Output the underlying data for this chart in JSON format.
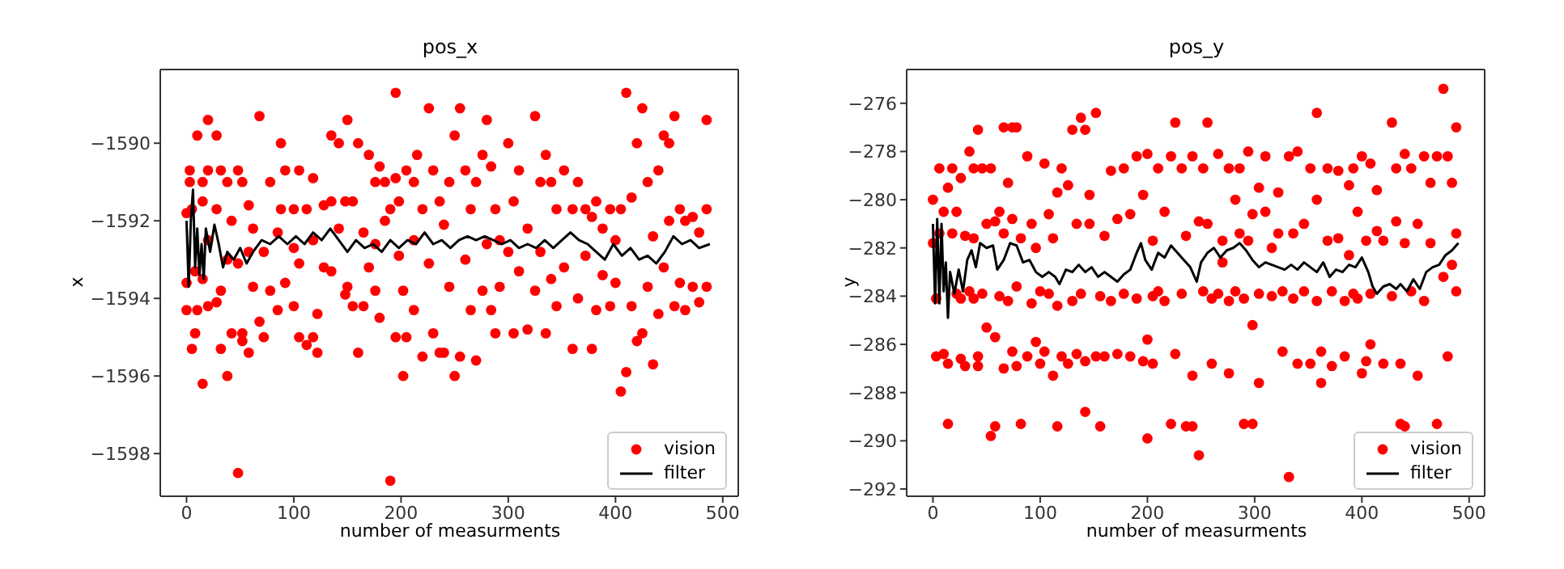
{
  "chart_data": [
    {
      "type": "scatter",
      "title": "pos_x",
      "xlabel": "number of measurments",
      "ylabel": "x",
      "xlim": [
        -24.5,
        514.5
      ],
      "xticks": [
        0,
        100,
        200,
        300,
        400,
        500
      ],
      "ylim": [
        -1599.1,
        -1588.1
      ],
      "yticks": [
        -1598,
        -1596,
        -1594,
        -1592,
        -1590
      ],
      "legend": "lower right",
      "series": [
        {
          "name": "vision",
          "type": "scatter",
          "marker": "circle",
          "color": "#ff0000",
          "x": [
            0,
            0,
            0,
            3,
            3,
            5,
            5,
            8,
            8,
            10,
            10,
            15,
            15,
            15,
            15,
            20,
            20,
            20,
            20,
            28,
            28,
            28,
            32,
            32,
            32,
            38,
            38,
            38,
            42,
            42,
            48,
            48,
            48,
            52,
            52,
            52,
            58,
            58,
            58,
            62,
            62,
            68,
            68,
            72,
            72,
            78,
            78,
            85,
            85,
            88,
            88,
            92,
            92,
            100,
            100,
            100,
            105,
            105,
            105,
            112,
            112,
            118,
            118,
            118,
            122,
            122,
            128,
            128,
            135,
            135,
            135,
            142,
            142,
            148,
            148,
            150,
            150,
            155,
            155,
            160,
            160,
            165,
            165,
            170,
            170,
            176,
            176,
            176,
            180,
            180,
            185,
            185,
            190,
            190,
            195,
            195,
            195,
            198,
            198,
            202,
            202,
            205,
            205,
            212,
            212,
            212,
            215,
            220,
            220,
            226,
            226,
            230,
            230,
            236,
            236,
            240,
            240,
            245,
            245,
            250,
            250,
            255,
            255,
            260,
            260,
            265,
            265,
            270,
            270,
            276,
            276,
            280,
            280,
            284,
            284,
            288,
            288,
            292,
            292,
            300,
            300,
            305,
            305,
            310,
            310,
            318,
            318,
            325,
            325,
            330,
            330,
            335,
            335,
            340,
            340,
            345,
            345,
            352,
            352,
            360,
            360,
            365,
            365,
            372,
            372,
            378,
            378,
            382,
            382,
            388,
            388,
            395,
            395,
            400,
            400,
            405,
            405,
            410,
            410,
            415,
            415,
            420,
            420,
            425,
            425,
            430,
            430,
            435,
            435,
            440,
            440,
            445,
            445,
            450,
            450,
            455,
            455,
            460,
            460,
            465,
            465,
            472,
            472,
            478,
            478,
            485,
            485,
            485
          ],
          "values": [
            -1591.8,
            -1593.6,
            -1594.3,
            -1590.7,
            -1591.0,
            -1591.7,
            -1595.3,
            -1594.9,
            -1593.3,
            -1589.8,
            -1594.3,
            -1591.0,
            -1591.5,
            -1596.2,
            -1593.5,
            -1590.7,
            -1589.4,
            -1592.5,
            -1594.2,
            -1589.8,
            -1594.1,
            -1591.7,
            -1590.7,
            -1595.3,
            -1593.8,
            -1591.0,
            -1596.0,
            -1593.0,
            -1594.9,
            -1592.0,
            -1590.7,
            -1598.5,
            -1593.1,
            -1591.0,
            -1595.1,
            -1594.9,
            -1591.6,
            -1595.4,
            -1592.8,
            -1593.7,
            -1592.2,
            -1589.3,
            -1594.6,
            -1592.8,
            -1595.0,
            -1591.0,
            -1593.8,
            -1592.3,
            -1594.3,
            -1590.0,
            -1591.7,
            -1590.7,
            -1593.6,
            -1594.2,
            -1591.7,
            -1592.7,
            -1590.7,
            -1595.0,
            -1593.1,
            -1591.7,
            -1595.2,
            -1590.9,
            -1592.5,
            -1595.0,
            -1594.4,
            -1595.4,
            -1591.6,
            -1593.2,
            -1589.8,
            -1593.3,
            -1591.5,
            -1590.0,
            -1592.2,
            -1591.5,
            -1593.9,
            -1589.4,
            -1593.7,
            -1591.5,
            -1594.2,
            -1590.0,
            -1595.4,
            -1592.3,
            -1594.2,
            -1590.3,
            -1593.2,
            -1591.0,
            -1593.8,
            -1592.6,
            -1590.6,
            -1594.5,
            -1591.0,
            -1592.0,
            -1591.7,
            -1598.7,
            -1588.7,
            -1590.9,
            -1595.0,
            -1592.9,
            -1591.5,
            -1596.0,
            -1593.8,
            -1590.7,
            -1595.0,
            -1591.0,
            -1592.5,
            -1594.3,
            -1590.3,
            -1591.7,
            -1595.5,
            -1589.1,
            -1593.1,
            -1590.7,
            -1594.9,
            -1591.5,
            -1595.4,
            -1592.1,
            -1595.4,
            -1591.0,
            -1593.7,
            -1589.8,
            -1596.0,
            -1589.1,
            -1595.5,
            -1590.7,
            -1593.0,
            -1591.7,
            -1594.3,
            -1591.0,
            -1595.6,
            -1590.3,
            -1593.8,
            -1589.4,
            -1592.6,
            -1590.6,
            -1594.3,
            -1591.7,
            -1594.9,
            -1592.5,
            -1593.7,
            -1590.0,
            -1592.8,
            -1591.5,
            -1594.9,
            -1590.7,
            -1593.3,
            -1592.2,
            -1594.8,
            -1589.3,
            -1593.8,
            -1591.0,
            -1592.8,
            -1590.3,
            -1594.9,
            -1591.0,
            -1593.5,
            -1591.7,
            -1594.2,
            -1590.7,
            -1593.2,
            -1591.7,
            -1595.3,
            -1591.0,
            -1594.0,
            -1591.7,
            -1592.9,
            -1591.9,
            -1595.3,
            -1591.5,
            -1594.3,
            -1592.2,
            -1593.4,
            -1591.7,
            -1594.2,
            -1592.5,
            -1593.6,
            -1596.4,
            -1591.7,
            -1588.7,
            -1595.9,
            -1591.4,
            -1594.2,
            -1590.0,
            -1595.1,
            -1589.1,
            -1594.9,
            -1591.0,
            -1593.7,
            -1592.4,
            -1595.7,
            -1590.7,
            -1594.4,
            -1589.8,
            -1593.2,
            -1590.0,
            -1592.0,
            -1589.3,
            -1594.2,
            -1591.7,
            -1593.6,
            -1592.0,
            -1594.3,
            -1591.9,
            -1593.7,
            -1592.3,
            -1594.1,
            -1589.4,
            -1593.7,
            -1591.7
          ]
        },
        {
          "name": "filter",
          "type": "line",
          "color": "#000000",
          "x": [
            0,
            2,
            4,
            6,
            8,
            10,
            12,
            14,
            16,
            18,
            22,
            26,
            30,
            34,
            38,
            44,
            50,
            56,
            62,
            70,
            78,
            86,
            94,
            102,
            110,
            118,
            126,
            134,
            142,
            150,
            158,
            166,
            174,
            182,
            190,
            198,
            206,
            214,
            222,
            230,
            238,
            246,
            254,
            262,
            270,
            278,
            286,
            294,
            302,
            310,
            318,
            326,
            334,
            342,
            350,
            358,
            366,
            374,
            382,
            390,
            398,
            406,
            414,
            422,
            430,
            438,
            446,
            454,
            462,
            470,
            478,
            488
          ],
          "values": [
            -1592.0,
            -1593.7,
            -1592.0,
            -1591.2,
            -1593.2,
            -1592.2,
            -1593.4,
            -1592.6,
            -1593.5,
            -1592.2,
            -1592.8,
            -1592.1,
            -1592.6,
            -1593.2,
            -1592.8,
            -1593.0,
            -1592.7,
            -1593.1,
            -1592.8,
            -1592.5,
            -1592.6,
            -1592.4,
            -1592.6,
            -1592.4,
            -1592.6,
            -1592.3,
            -1592.5,
            -1592.2,
            -1592.5,
            -1592.8,
            -1592.5,
            -1592.7,
            -1592.6,
            -1592.8,
            -1592.5,
            -1592.7,
            -1592.5,
            -1592.6,
            -1592.3,
            -1592.6,
            -1592.5,
            -1592.7,
            -1592.5,
            -1592.4,
            -1592.5,
            -1592.4,
            -1592.5,
            -1592.6,
            -1592.5,
            -1592.7,
            -1592.6,
            -1592.7,
            -1592.5,
            -1592.7,
            -1592.5,
            -1592.3,
            -1592.5,
            -1592.6,
            -1592.8,
            -1593.0,
            -1592.6,
            -1592.9,
            -1592.7,
            -1593.0,
            -1592.9,
            -1593.1,
            -1592.8,
            -1592.4,
            -1592.6,
            -1592.5,
            -1592.7,
            -1592.6
          ]
        }
      ]
    },
    {
      "type": "scatter",
      "title": "pos_y",
      "xlabel": "number of measurments",
      "ylabel": "y",
      "xlim": [
        -24.5,
        514.5
      ],
      "xticks": [
        0,
        100,
        200,
        300,
        400,
        500
      ],
      "ylim": [
        -292.3,
        -274.6
      ],
      "yticks": [
        -292,
        -290,
        -288,
        -286,
        -284,
        -282,
        -280,
        -278,
        -276
      ],
      "legend": "lower right",
      "series": [
        {
          "name": "vision",
          "type": "scatter",
          "marker": "circle",
          "color": "#ff0000",
          "x": [
            0,
            0,
            3,
            3,
            6,
            6,
            10,
            10,
            14,
            14,
            14,
            18,
            18,
            22,
            22,
            26,
            26,
            26,
            30,
            30,
            34,
            34,
            38,
            38,
            38,
            42,
            42,
            42,
            46,
            46,
            50,
            50,
            54,
            54,
            58,
            58,
            58,
            62,
            62,
            66,
            66,
            66,
            70,
            70,
            74,
            74,
            74,
            78,
            78,
            78,
            82,
            82,
            88,
            88,
            92,
            92,
            96,
            96,
            100,
            100,
            104,
            104,
            108,
            108,
            112,
            112,
            116,
            116,
            116,
            120,
            120,
            126,
            126,
            130,
            130,
            134,
            134,
            138,
            138,
            142,
            142,
            142,
            146,
            146,
            152,
            152,
            156,
            156,
            160,
            160,
            166,
            166,
            172,
            172,
            178,
            178,
            184,
            184,
            190,
            190,
            196,
            196,
            200,
            200,
            200,
            205,
            205,
            205,
            210,
            210,
            216,
            216,
            222,
            222,
            226,
            226,
            232,
            232,
            236,
            236,
            242,
            242,
            242,
            248,
            248,
            252,
            252,
            256,
            256,
            260,
            260,
            266,
            266,
            270,
            270,
            276,
            276,
            276,
            282,
            282,
            286,
            286,
            290,
            290,
            294,
            294,
            298,
            298,
            298,
            304,
            304,
            304,
            310,
            310,
            316,
            316,
            322,
            322,
            326,
            326,
            332,
            332,
            336,
            336,
            340,
            340,
            346,
            346,
            352,
            352,
            358,
            358,
            358,
            362,
            362,
            368,
            368,
            372,
            372,
            378,
            378,
            384,
            384,
            388,
            388,
            392,
            392,
            396,
            396,
            400,
            400,
            404,
            404,
            408,
            408,
            408,
            414,
            414,
            420,
            420,
            428,
            428,
            432,
            432,
            436,
            436,
            440,
            440,
            440,
            446,
            446,
            452,
            452,
            458,
            458,
            464,
            464,
            470,
            470,
            476,
            476,
            480,
            480,
            484,
            484,
            488,
            488,
            488
          ],
          "values": [
            -281.8,
            -280.0,
            -284.1,
            -286.5,
            -281.4,
            -278.7,
            -286.4,
            -280.5,
            -289.3,
            -286.8,
            -279.5,
            -278.7,
            -281.4,
            -280.5,
            -283.9,
            -279.1,
            -284.1,
            -286.6,
            -281.5,
            -286.9,
            -278.0,
            -283.8,
            -278.7,
            -284.1,
            -281.6,
            -277.1,
            -286.5,
            -286.9,
            -278.7,
            -283.9,
            -285.3,
            -281.0,
            -278.7,
            -289.8,
            -285.7,
            -289.4,
            -280.9,
            -280.5,
            -284.0,
            -277.0,
            -287.0,
            -281.4,
            -279.3,
            -284.2,
            -277.0,
            -280.8,
            -286.3,
            -277.0,
            -286.9,
            -283.6,
            -281.6,
            -289.3,
            -278.2,
            -286.5,
            -281.0,
            -284.3,
            -285.9,
            -282.0,
            -286.8,
            -283.8,
            -278.5,
            -286.3,
            -280.6,
            -283.9,
            -287.3,
            -281.6,
            -279.7,
            -289.4,
            -284.4,
            -278.7,
            -286.5,
            -279.4,
            -286.8,
            -277.1,
            -284.2,
            -281.0,
            -286.4,
            -276.6,
            -283.9,
            -277.1,
            -288.8,
            -286.7,
            -279.8,
            -281.0,
            -276.4,
            -286.5,
            -284.0,
            -289.4,
            -281.5,
            -286.5,
            -278.8,
            -284.2,
            -280.8,
            -286.4,
            -278.7,
            -283.9,
            -280.6,
            -286.5,
            -278.2,
            -284.1,
            -279.8,
            -286.7,
            -278.1,
            -289.9,
            -285.8,
            -281.7,
            -284.0,
            -286.8,
            -278.7,
            -283.8,
            -280.5,
            -284.2,
            -278.2,
            -289.3,
            -276.8,
            -286.4,
            -278.7,
            -283.9,
            -281.5,
            -289.4,
            -278.2,
            -287.3,
            -289.4,
            -280.9,
            -290.6,
            -278.7,
            -283.8,
            -276.8,
            -281.0,
            -286.8,
            -284.1,
            -278.1,
            -283.9,
            -282.6,
            -281.7,
            -278.7,
            -287.2,
            -284.2,
            -280.0,
            -283.8,
            -278.7,
            -281.4,
            -289.3,
            -284.1,
            -278.0,
            -281.7,
            -280.6,
            -289.3,
            -285.2,
            -287.6,
            -279.5,
            -283.9,
            -278.2,
            -280.5,
            -282.0,
            -284.0,
            -279.7,
            -281.4,
            -286.3,
            -283.8,
            -291.5,
            -278.2,
            -281.4,
            -284.1,
            -278.0,
            -286.8,
            -281.0,
            -283.8,
            -278.7,
            -286.8,
            -276.4,
            -280.0,
            -284.2,
            -287.6,
            -286.3,
            -278.7,
            -281.7,
            -283.8,
            -286.9,
            -278.8,
            -281.6,
            -284.2,
            -286.5,
            -279.4,
            -282.3,
            -278.7,
            -283.9,
            -280.5,
            -284.1,
            -278.2,
            -287.2,
            -281.7,
            -286.7,
            -278.5,
            -283.9,
            -286.0,
            -279.6,
            -281.3,
            -281.7,
            -286.8,
            -276.8,
            -284.0,
            -278.7,
            -280.9,
            -289.3,
            -286.8,
            -278.1,
            -281.8,
            -289.4,
            -278.7,
            -283.8,
            -287.3,
            -281.0,
            -278.2,
            -284.2,
            -279.3,
            -281.8,
            -278.2,
            -289.3,
            -275.4,
            -283.2,
            -278.2,
            -286.5,
            -279.3,
            -282.7,
            -277.0,
            -283.8,
            -281.4
          ]
        },
        {
          "name": "filter",
          "type": "line",
          "color": "#000000",
          "x": [
            0,
            2,
            4,
            6,
            8,
            10,
            12,
            14,
            16,
            20,
            24,
            28,
            32,
            36,
            40,
            44,
            50,
            56,
            60,
            66,
            72,
            78,
            84,
            90,
            96,
            102,
            108,
            114,
            118,
            124,
            130,
            136,
            142,
            148,
            154,
            160,
            166,
            172,
            178,
            184,
            190,
            194,
            198,
            204,
            210,
            216,
            222,
            228,
            234,
            240,
            246,
            250,
            256,
            262,
            268,
            274,
            280,
            286,
            292,
            298,
            304,
            310,
            316,
            322,
            328,
            334,
            340,
            346,
            352,
            358,
            364,
            370,
            376,
            382,
            388,
            394,
            400,
            406,
            410,
            414,
            420,
            426,
            432,
            436,
            442,
            448,
            454,
            460,
            466,
            472,
            478,
            484,
            490
          ],
          "values": [
            -281.0,
            -284.3,
            -280.8,
            -284.3,
            -281.0,
            -283.8,
            -282.6,
            -284.9,
            -283.0,
            -283.9,
            -282.9,
            -283.8,
            -282.5,
            -282.1,
            -282.8,
            -281.8,
            -282.0,
            -281.9,
            -282.9,
            -282.5,
            -281.8,
            -281.9,
            -282.6,
            -282.5,
            -283.0,
            -283.2,
            -283.0,
            -283.2,
            -283.5,
            -282.9,
            -283.0,
            -282.7,
            -283.0,
            -282.8,
            -283.2,
            -283.0,
            -283.2,
            -283.4,
            -283.1,
            -282.9,
            -282.2,
            -281.8,
            -282.5,
            -282.9,
            -282.2,
            -282.4,
            -281.9,
            -282.2,
            -282.5,
            -282.8,
            -283.4,
            -282.6,
            -282.2,
            -282.0,
            -282.4,
            -282.1,
            -282.0,
            -281.8,
            -282.1,
            -282.5,
            -282.8,
            -282.6,
            -282.7,
            -282.8,
            -282.9,
            -282.7,
            -282.9,
            -282.6,
            -282.8,
            -283.0,
            -282.6,
            -283.2,
            -282.9,
            -283.0,
            -282.7,
            -282.8,
            -282.4,
            -283.0,
            -283.6,
            -283.9,
            -283.6,
            -283.5,
            -283.7,
            -283.5,
            -283.8,
            -283.3,
            -283.7,
            -283.0,
            -282.8,
            -282.7,
            -282.3,
            -282.1,
            -281.8
          ]
        }
      ]
    }
  ]
}
